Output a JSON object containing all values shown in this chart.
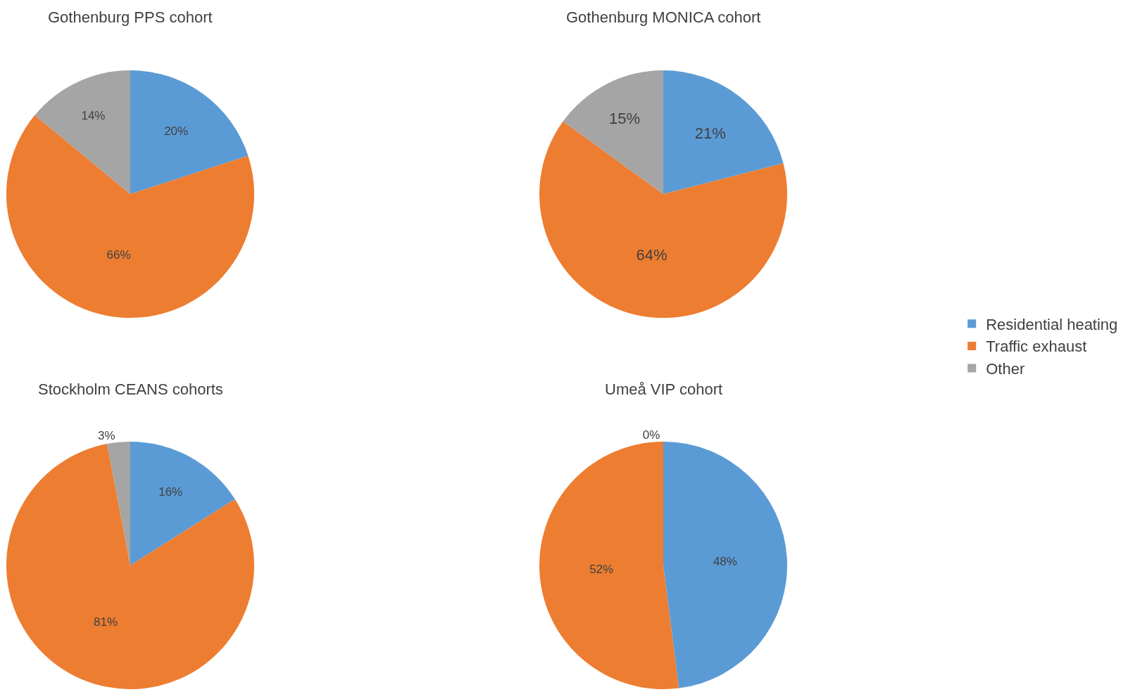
{
  "chart_data": [
    {
      "type": "pie",
      "title": "Gothenburg PPS cohort",
      "categories": [
        "Residential heating",
        "Traffic exhaust",
        "Other"
      ],
      "values": [
        20,
        66,
        14
      ],
      "value_labels": [
        "20%",
        "66%",
        "14%"
      ],
      "colors": [
        "#5b9bd5",
        "#ed7d31",
        "#a5a5a5"
      ],
      "legend": "right"
    },
    {
      "type": "pie",
      "title": "Gothenburg MONICA cohort",
      "categories": [
        null,
        null,
        null
      ],
      "values": [
        21,
        64,
        15
      ],
      "value_labels": [
        "21%",
        "64%",
        "15%"
      ],
      "colors": [
        "#5b9bd5",
        "#ed7d31",
        "#a5a5a5"
      ]
    },
    {
      "type": "pie",
      "title": "Stockholm CEANS cohorts",
      "categories": [
        null,
        null,
        null
      ],
      "values": [
        16,
        81,
        3
      ],
      "value_labels": [
        "16%",
        "81%",
        "3%"
      ],
      "colors": [
        "#5b9bd5",
        "#ed7d31",
        "#a5a5a5"
      ]
    },
    {
      "type": "pie",
      "title": "Umeå VIP cohort",
      "categories": [
        null,
        null,
        null
      ],
      "values": [
        48,
        52,
        0
      ],
      "value_labels": [
        "48%",
        "52%",
        "0%"
      ],
      "colors": [
        "#5b9bd5",
        "#ed7d31",
        "#a5a5a5"
      ]
    }
  ]
}
